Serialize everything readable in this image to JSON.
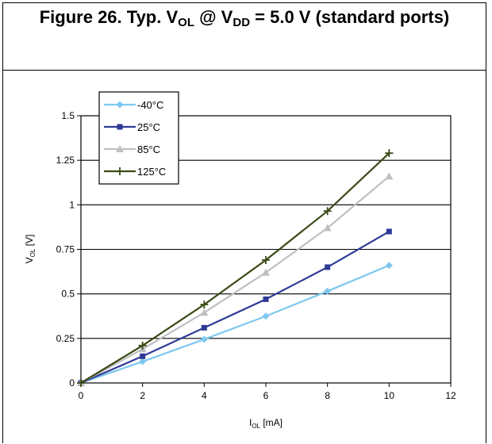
{
  "figure": {
    "prefix": "Figure 26. Typ. V",
    "sub1": "OL",
    "mid": " @ V",
    "sub2": "DD",
    "suffix": " = 5.0 V (standard ports)"
  },
  "chart_data": {
    "type": "line",
    "title": "Figure 26. Typ. VOL @ VDD = 5.0 V (standard ports)",
    "xlabel": "IOL [mA]",
    "ylabel": "VOL [V]",
    "xlabel_main": "I",
    "xlabel_sub": "OL",
    "xlabel_unit": " [mA]",
    "ylabel_main": "V",
    "ylabel_sub": "OL",
    "ylabel_unit": " [V]",
    "xlim": [
      0,
      12
    ],
    "ylim": [
      0,
      1.5
    ],
    "xticks": [
      0,
      2,
      4,
      6,
      8,
      10,
      12
    ],
    "yticks": [
      0,
      0.25,
      0.5,
      0.75,
      1,
      1.25,
      1.5
    ],
    "ytick_labels": [
      "0",
      "0.25",
      "0.5",
      "0.75",
      "1",
      "1.25",
      "1.5"
    ],
    "grid": "horizontal",
    "legend_position": "top-left",
    "x": [
      0,
      2,
      4,
      6,
      8,
      10
    ],
    "series": [
      {
        "name": "-40°C",
        "color": "#7ec8f0",
        "marker": "diamond",
        "values": [
          0,
          0.12,
          0.245,
          0.375,
          0.515,
          0.66
        ]
      },
      {
        "name": "25°C",
        "color": "#2e3a96",
        "marker": "square",
        "values": [
          0,
          0.15,
          0.31,
          0.47,
          0.65,
          0.85
        ]
      },
      {
        "name": "85°C",
        "color": "#bfbfc4",
        "marker": "triangle",
        "values": [
          0,
          0.19,
          0.395,
          0.62,
          0.87,
          1.16
        ]
      },
      {
        "name": "125°C",
        "color": "#3a4a16",
        "marker": "plus",
        "values": [
          0,
          0.21,
          0.44,
          0.69,
          0.965,
          1.29
        ]
      }
    ]
  }
}
